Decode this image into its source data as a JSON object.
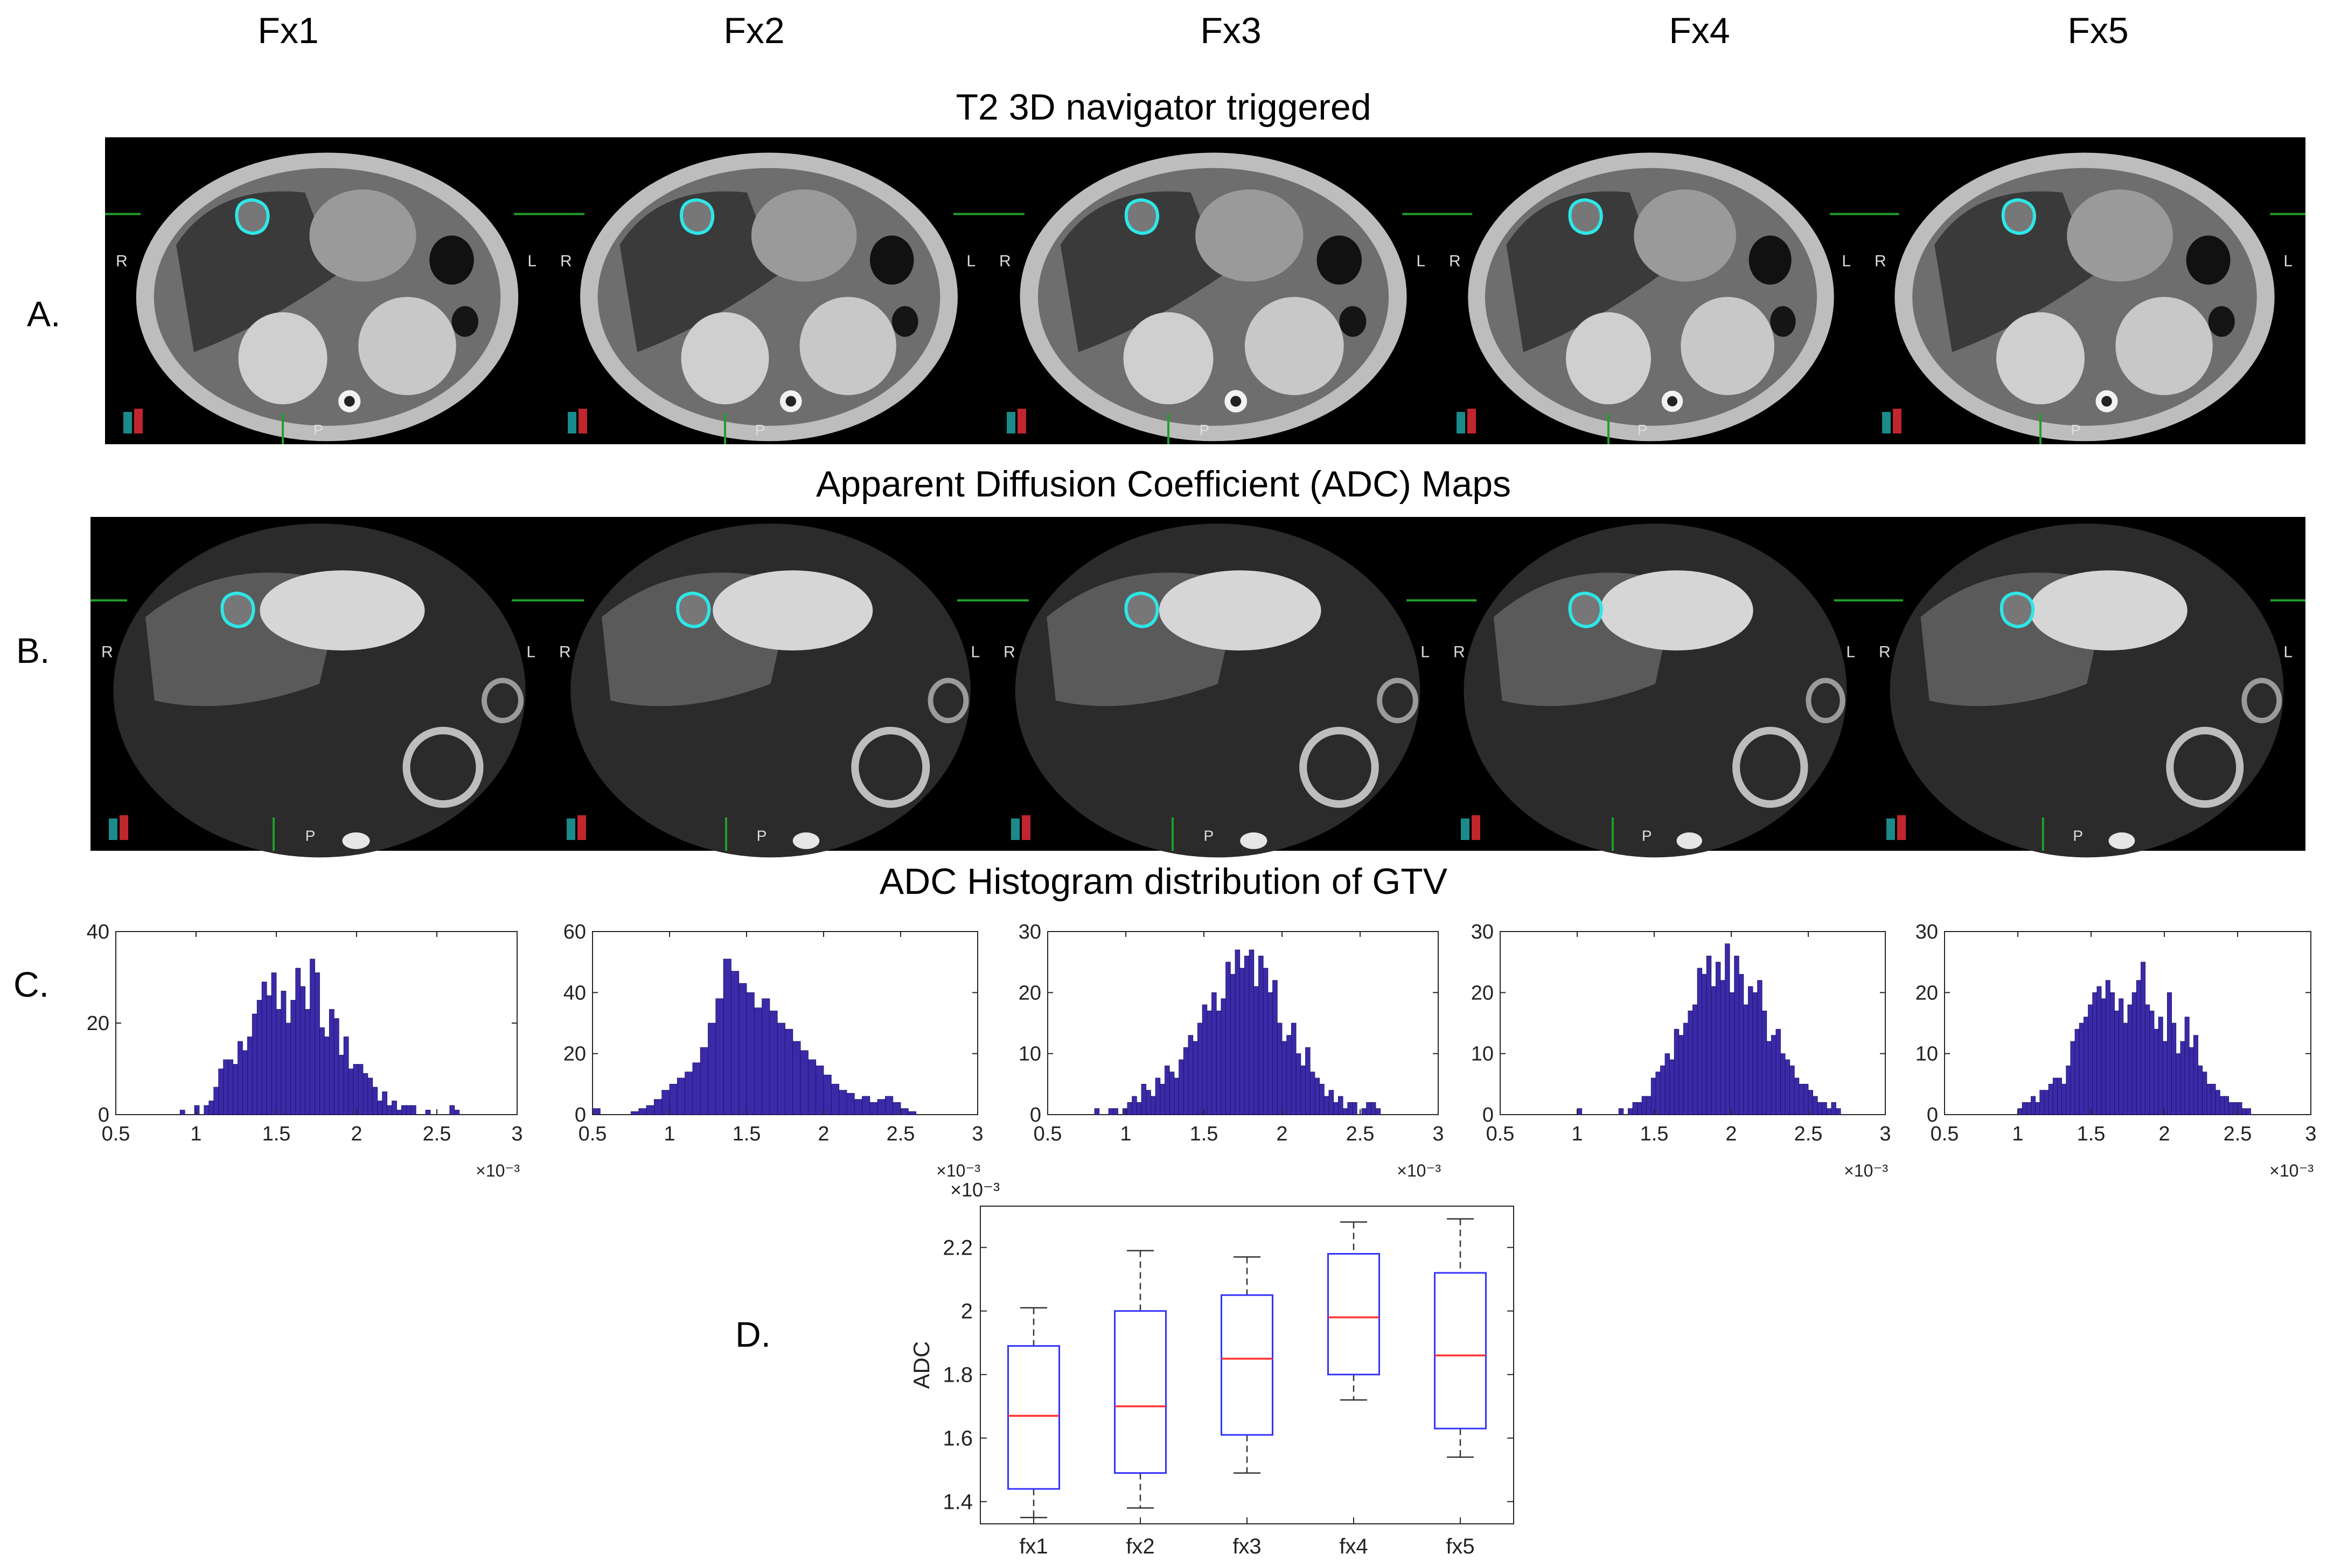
{
  "columns": [
    "Fx1",
    "Fx2",
    "Fx3",
    "Fx4",
    "Fx5"
  ],
  "rows": {
    "a": {
      "letter": "A.",
      "title": "T2 3D navigator triggered"
    },
    "b": {
      "letter": "B.",
      "title": "Apparent Diffusion Coefficient (ADC) Maps"
    },
    "c": {
      "letter": "C.",
      "title": "ADC Histogram distribution of GTV"
    },
    "d": {
      "letter": "D."
    }
  },
  "orientation": {
    "right": "R",
    "left": "L",
    "posterior": "P"
  },
  "colors": {
    "contour": "#2fe6e6",
    "bars": "#3b2aa8",
    "box": "#3333ff",
    "median": "#ff3333"
  },
  "chart_data": [
    {
      "type": "bar",
      "panel": "C-Fx1",
      "title": "",
      "xlabel": "",
      "ylabel": "",
      "x_exponent": "×10⁻³",
      "xlim": [
        0.5,
        3
      ],
      "ylim": [
        0,
        40
      ],
      "xticks": [
        "0.5",
        "1",
        "1.5",
        "2",
        "2.5",
        "3"
      ],
      "yticks": [
        "0",
        "20",
        "40"
      ],
      "bin_start": 0.9,
      "bin_width": 0.03,
      "values": [
        1,
        0,
        0,
        2,
        0,
        2,
        3,
        6,
        10,
        12,
        12,
        11,
        16,
        14,
        17,
        22,
        25,
        29,
        26,
        31,
        23,
        27,
        20,
        25,
        32,
        28,
        23,
        34,
        31,
        19,
        17,
        23,
        21,
        13,
        17,
        10,
        11,
        11,
        9,
        8,
        6,
        3,
        5,
        2,
        3,
        1,
        2,
        2,
        2,
        0,
        0,
        1,
        0,
        0,
        0,
        0,
        2,
        1
      ]
    },
    {
      "type": "bar",
      "panel": "C-Fx2",
      "title": "",
      "xlabel": "",
      "ylabel": "",
      "x_exponent": "×10⁻³",
      "xlim": [
        0.5,
        3
      ],
      "ylim": [
        0,
        60
      ],
      "xticks": [
        "0.5",
        "1",
        "1.5",
        "2",
        "2.5",
        "3"
      ],
      "yticks": [
        "0",
        "20",
        "40",
        "60"
      ],
      "bin_start": 0.5,
      "bin_width": 0.05,
      "values": [
        2,
        0,
        0,
        0,
        0,
        1,
        2,
        3,
        5,
        8,
        10,
        12,
        14,
        17,
        22,
        30,
        38,
        51,
        47,
        43,
        40,
        35,
        38,
        34,
        30,
        28,
        24,
        21,
        18,
        16,
        13,
        10,
        8,
        7,
        5,
        6,
        4,
        5,
        6,
        4,
        2,
        1
      ]
    },
    {
      "type": "bar",
      "panel": "C-Fx3",
      "title": "",
      "xlabel": "",
      "ylabel": "",
      "x_exponent": "×10⁻³",
      "xlim": [
        0.5,
        3
      ],
      "ylim": [
        0,
        30
      ],
      "xticks": [
        "0.5",
        "1",
        "1.5",
        "2",
        "2.5",
        "3"
      ],
      "yticks": [
        "0",
        "10",
        "20",
        "30"
      ],
      "bin_start": 0.8,
      "bin_width": 0.03,
      "values": [
        1,
        0,
        0,
        1,
        1,
        0,
        1,
        2,
        3,
        2,
        5,
        4,
        3,
        6,
        5,
        8,
        7,
        6,
        9,
        11,
        13,
        12,
        15,
        18,
        17,
        20,
        17,
        19,
        25,
        23,
        27,
        24,
        26,
        27,
        21,
        26,
        24,
        20,
        22,
        15,
        12,
        13,
        15,
        10,
        8,
        11,
        7,
        6,
        5,
        3,
        4,
        2,
        3,
        1,
        2,
        2,
        0,
        1,
        2,
        2,
        1
      ]
    },
    {
      "type": "bar",
      "panel": "C-Fx4",
      "title": "",
      "xlabel": "",
      "ylabel": "",
      "x_exponent": "×10⁻³",
      "xlim": [
        0.5,
        3
      ],
      "ylim": [
        0,
        30
      ],
      "xticks": [
        "0.5",
        "1",
        "1.5",
        "2",
        "2.5",
        "3"
      ],
      "yticks": [
        "0",
        "10",
        "20",
        "30"
      ],
      "bin_start": 1.0,
      "bin_width": 0.03,
      "values": [
        1,
        0,
        0,
        0,
        0,
        0,
        0,
        0,
        0,
        1,
        0,
        1,
        2,
        2,
        3,
        3,
        6,
        7,
        8,
        10,
        9,
        14,
        13,
        15,
        17,
        18,
        24,
        23,
        26,
        21,
        25,
        22,
        28,
        20,
        26,
        23,
        18,
        21,
        20,
        22,
        17,
        12,
        13,
        14,
        10,
        9,
        8,
        6,
        5,
        5,
        4,
        3,
        2,
        2,
        1,
        2,
        1
      ]
    },
    {
      "type": "bar",
      "panel": "C-Fx5",
      "title": "",
      "xlabel": "",
      "ylabel": "",
      "x_exponent": "×10⁻³",
      "xlim": [
        0.5,
        3
      ],
      "ylim": [
        0,
        30
      ],
      "xticks": [
        "0.5",
        "1",
        "1.5",
        "2",
        "2.5",
        "3"
      ],
      "yticks": [
        "0",
        "10",
        "20",
        "30"
      ],
      "bin_start": 1.0,
      "bin_width": 0.03,
      "values": [
        1,
        2,
        2,
        3,
        2,
        4,
        4,
        5,
        6,
        6,
        5,
        8,
        12,
        14,
        15,
        16,
        18,
        20,
        21,
        19,
        22,
        20,
        17,
        19,
        15,
        18,
        20,
        22,
        25,
        18,
        17,
        14,
        16,
        12,
        20,
        15,
        10,
        12,
        16,
        11,
        13,
        8,
        7,
        5,
        5,
        4,
        3,
        3,
        2,
        2,
        2,
        1,
        1
      ]
    },
    {
      "type": "box",
      "panel": "D",
      "title": "",
      "xlabel": "",
      "ylabel": "ADC",
      "y_exponent": "×10⁻³",
      "ylim": [
        1.33,
        2.33
      ],
      "yticks": [
        "1.4",
        "1.6",
        "1.8",
        "2",
        "2.2"
      ],
      "categories": [
        "fx1",
        "fx2",
        "fx3",
        "fx4",
        "fx5"
      ],
      "boxes": [
        {
          "min": 1.35,
          "q1": 1.44,
          "median": 1.67,
          "q3": 1.89,
          "max": 2.01
        },
        {
          "min": 1.38,
          "q1": 1.49,
          "median": 1.7,
          "q3": 2.0,
          "max": 2.19
        },
        {
          "min": 1.49,
          "q1": 1.61,
          "median": 1.85,
          "q3": 2.05,
          "max": 2.17
        },
        {
          "min": 1.72,
          "q1": 1.8,
          "median": 1.98,
          "q3": 2.18,
          "max": 2.28
        },
        {
          "min": 1.54,
          "q1": 1.63,
          "median": 1.86,
          "q3": 2.12,
          "max": 2.29
        }
      ]
    }
  ]
}
